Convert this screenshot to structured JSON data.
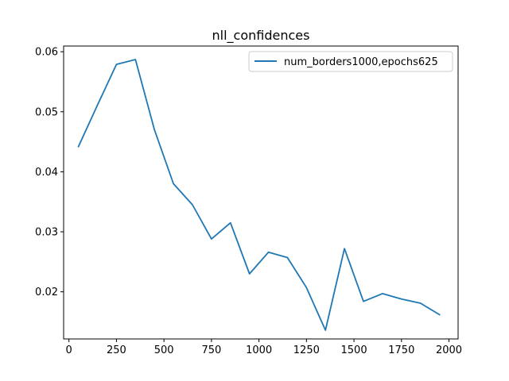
{
  "chart_data": {
    "type": "line",
    "title": "nll_confidences",
    "xlabel": "",
    "ylabel": "",
    "xlim": [
      -28,
      2048
    ],
    "ylim": [
      0.01215,
      0.06095
    ],
    "xticks": [
      0,
      250,
      500,
      750,
      1000,
      1250,
      1500,
      1750,
      2000
    ],
    "yticks": [
      0.02,
      0.03,
      0.04,
      0.05,
      0.06
    ],
    "ytick_labels": [
      "0.02",
      "0.03",
      "0.04",
      "0.05",
      "0.06"
    ],
    "grid": false,
    "legend_position": "top-right",
    "series": [
      {
        "name": "num_borders1000,epochs625",
        "color": "#1f77b4",
        "x": [
          50,
          150,
          250,
          350,
          450,
          550,
          650,
          750,
          850,
          950,
          1050,
          1150,
          1250,
          1350,
          1450,
          1550,
          1650,
          1750,
          1850,
          1950
        ],
        "y": [
          0.0442,
          0.0511,
          0.0579,
          0.0587,
          0.047,
          0.038,
          0.0345,
          0.0288,
          0.0315,
          0.023,
          0.0266,
          0.0257,
          0.0207,
          0.0136,
          0.0272,
          0.0184,
          0.0197,
          0.0188,
          0.0181,
          0.0162
        ]
      }
    ]
  }
}
